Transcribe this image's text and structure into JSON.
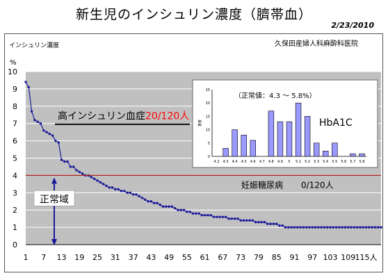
{
  "title": "新生児のインシュリン濃度（臍帯血）",
  "date": "2/23/2010",
  "source": "久保田産婦人科麻酔科医院",
  "colors": {
    "plot_bg": "#c0c0c0",
    "series": "#1a1a99",
    "threshold_line": "#b22222",
    "inset_bars": "#9999ff"
  },
  "chart_data": [
    {
      "type": "line",
      "ylabel": "インシュリン濃度",
      "yunit": "%",
      "ylim": [
        0,
        10
      ],
      "yticks": [
        0,
        1,
        2,
        3,
        4,
        5,
        6,
        7,
        8,
        9,
        10
      ],
      "xlim": [
        1,
        120
      ],
      "xticks": [
        1,
        7,
        13,
        19,
        25,
        31,
        37,
        43,
        49,
        55,
        61,
        67,
        73,
        79,
        85,
        91,
        97,
        103,
        109,
        115
      ],
      "xtick_labels": [
        "1",
        "7",
        "13",
        "19",
        "25",
        "31",
        "37",
        "43",
        "49",
        "55",
        "61",
        "67",
        "73",
        "79",
        "85",
        "91",
        "97",
        "103",
        "109",
        "115人"
      ],
      "grid": true,
      "series": [
        {
          "values": [
            9.4,
            9.1,
            7.7,
            7.2,
            7.1,
            7.0,
            6.6,
            6.5,
            6.4,
            6.3,
            6.0,
            5.9,
            4.9,
            4.8,
            4.8,
            4.5,
            4.5,
            4.3,
            4.2,
            4.1,
            4.0,
            4.0,
            3.9,
            3.8,
            3.7,
            3.6,
            3.5,
            3.4,
            3.3,
            3.3,
            3.2,
            3.2,
            3.1,
            3.1,
            3.0,
            3.0,
            2.9,
            2.9,
            2.8,
            2.7,
            2.6,
            2.5,
            2.5,
            2.4,
            2.4,
            2.3,
            2.2,
            2.2,
            2.2,
            2.2,
            2.1,
            2.0,
            2.0,
            2.0,
            1.9,
            1.9,
            1.8,
            1.8,
            1.8,
            1.7,
            1.7,
            1.7,
            1.7,
            1.6,
            1.6,
            1.6,
            1.6,
            1.6,
            1.5,
            1.5,
            1.5,
            1.5,
            1.4,
            1.4,
            1.4,
            1.4,
            1.4,
            1.3,
            1.3,
            1.3,
            1.3,
            1.2,
            1.2,
            1.2,
            1.2,
            1.1,
            1.1,
            1.0,
            1.0,
            1.0,
            1.0,
            1.0,
            1.0,
            1.0,
            1.0,
            1.0,
            1.0,
            1.0,
            1.0,
            1.0,
            1.0,
            1.0,
            1.0,
            1.0,
            1.0,
            1.0,
            1.0,
            1.0,
            1.0,
            1.0,
            1.0,
            1.0,
            1.0,
            1.0,
            1.0,
            1.0,
            1.0,
            1.0,
            1.0,
            1.0
          ]
        }
      ],
      "threshold": {
        "value": 4.0,
        "label": "妊娠糖尿病",
        "count": "0/120人"
      },
      "high_marker": {
        "value": 7.0,
        "label": "高インシュリン血症",
        "count": "20/120人"
      },
      "normal_range": {
        "label": "正常域",
        "from": 0,
        "to": 4.0
      }
    },
    {
      "type": "bar",
      "name": "HbA1C",
      "note": "（正常値：4.3 ～ 5.8%）",
      "ylabel": "患者",
      "ylim": [
        0,
        25
      ],
      "yticks": [
        0,
        5,
        10,
        15,
        20,
        25
      ],
      "categories": [
        "4.2",
        "4.3",
        "4.4",
        "4.5",
        "4.6",
        "4.7",
        "4.8",
        "4.9",
        "5",
        "5.1",
        "5.2",
        "5.3",
        "5.4",
        "5.5",
        "5.6",
        "5.7",
        "5.8"
      ],
      "values": [
        0,
        3,
        10,
        8,
        6,
        0,
        17,
        13,
        13,
        20,
        15,
        5,
        2,
        5,
        0,
        1,
        1
      ]
    }
  ]
}
